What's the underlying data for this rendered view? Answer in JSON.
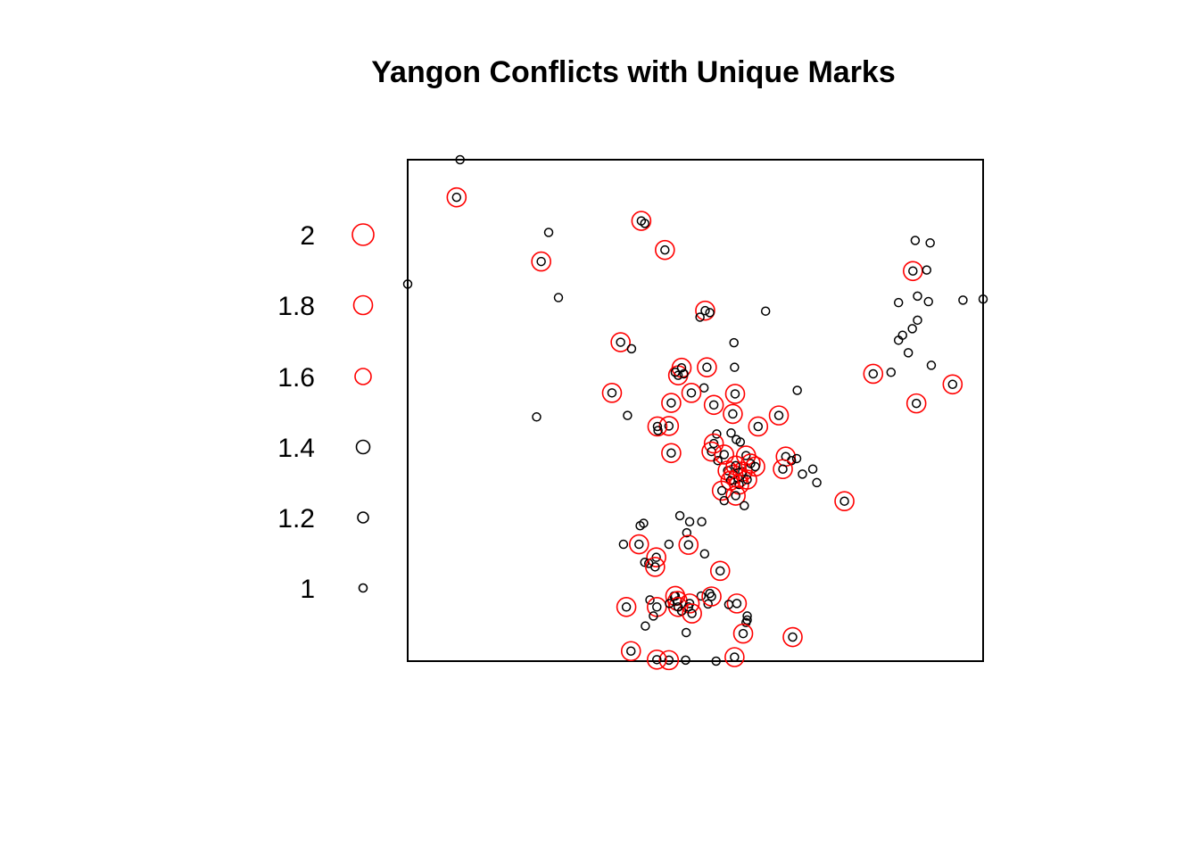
{
  "chart_data": {
    "type": "scatter",
    "title": "Yangon Conflicts with Unique Marks",
    "xlabel": "",
    "ylabel": "",
    "axes": "none",
    "frame": true,
    "legend": {
      "placement": "left",
      "entries": [
        {
          "label": "2",
          "mark": 2.0
        },
        {
          "label": "1.8",
          "mark": 1.8
        },
        {
          "label": "1.6",
          "mark": 1.6
        },
        {
          "label": "1.4",
          "mark": 1.4
        },
        {
          "label": "1.2",
          "mark": 1.2
        },
        {
          "label": "1",
          "mark": 1.0
        }
      ]
    },
    "colors": {
      "mark_low": "#000000",
      "mark_high": "#ff0000"
    },
    "marks_note": "each point drawn as an open black circle; duplicated points additionally ringed in red",
    "xlim": [
      0,
      1
    ],
    "ylim": [
      0,
      1
    ],
    "series": [
      {
        "points": [
          [
            0.091,
            1.0,
            1
          ],
          [
            0.085,
            0.925,
            2
          ],
          [
            0.0,
            0.752,
            1
          ],
          [
            0.245,
            0.855,
            1
          ],
          [
            0.232,
            0.797,
            2
          ],
          [
            0.262,
            0.725,
            1
          ],
          [
            0.406,
            0.878,
            2
          ],
          [
            0.412,
            0.873,
            1
          ],
          [
            0.447,
            0.82,
            2
          ],
          [
            0.517,
            0.699,
            2
          ],
          [
            0.508,
            0.686,
            1
          ],
          [
            0.525,
            0.695,
            1
          ],
          [
            0.622,
            0.698,
            1
          ],
          [
            0.37,
            0.636,
            2
          ],
          [
            0.389,
            0.623,
            1
          ],
          [
            0.567,
            0.635,
            1
          ],
          [
            0.568,
            0.586,
            1
          ],
          [
            0.47,
            0.57,
            2
          ],
          [
            0.476,
            0.585,
            2
          ],
          [
            0.48,
            0.573,
            1
          ],
          [
            0.465,
            0.576,
            1
          ],
          [
            0.52,
            0.586,
            2
          ],
          [
            0.515,
            0.545,
            1
          ],
          [
            0.493,
            0.535,
            2
          ],
          [
            0.355,
            0.535,
            2
          ],
          [
            0.382,
            0.49,
            1
          ],
          [
            0.224,
            0.487,
            1
          ],
          [
            0.458,
            0.515,
            2
          ],
          [
            0.532,
            0.511,
            2
          ],
          [
            0.569,
            0.533,
            2
          ],
          [
            0.565,
            0.493,
            2
          ],
          [
            0.454,
            0.469,
            2
          ],
          [
            0.434,
            0.468,
            2
          ],
          [
            0.435,
            0.46,
            1
          ],
          [
            0.609,
            0.468,
            2
          ],
          [
            0.645,
            0.49,
            2
          ],
          [
            0.677,
            0.54,
            1
          ],
          [
            0.537,
            0.453,
            1
          ],
          [
            0.532,
            0.434,
            2
          ],
          [
            0.562,
            0.455,
            1
          ],
          [
            0.571,
            0.442,
            1
          ],
          [
            0.578,
            0.437,
            1
          ],
          [
            0.528,
            0.418,
            2
          ],
          [
            0.539,
            0.4,
            1
          ],
          [
            0.55,
            0.412,
            2
          ],
          [
            0.458,
            0.415,
            2
          ],
          [
            0.556,
            0.38,
            2
          ],
          [
            0.566,
            0.372,
            2
          ],
          [
            0.574,
            0.365,
            2
          ],
          [
            0.582,
            0.378,
            2
          ],
          [
            0.57,
            0.39,
            2
          ],
          [
            0.588,
            0.41,
            2
          ],
          [
            0.596,
            0.394,
            2
          ],
          [
            0.561,
            0.36,
            2
          ],
          [
            0.576,
            0.352,
            2
          ],
          [
            0.59,
            0.362,
            2
          ],
          [
            0.604,
            0.388,
            2
          ],
          [
            0.546,
            0.34,
            2
          ],
          [
            0.57,
            0.33,
            2
          ],
          [
            0.55,
            0.32,
            1
          ],
          [
            0.585,
            0.31,
            1
          ],
          [
            0.657,
            0.408,
            2
          ],
          [
            0.667,
            0.4,
            1
          ],
          [
            0.652,
            0.383,
            2
          ],
          [
            0.676,
            0.404,
            1
          ],
          [
            0.686,
            0.373,
            1
          ],
          [
            0.704,
            0.383,
            1
          ],
          [
            0.711,
            0.356,
            1
          ],
          [
            0.759,
            0.319,
            2
          ],
          [
            0.965,
            0.72,
            1
          ],
          [
            0.886,
            0.728,
            1
          ],
          [
            0.905,
            0.717,
            1
          ],
          [
            0.878,
            0.778,
            2
          ],
          [
            0.886,
            0.68,
            1
          ],
          [
            0.877,
            0.663,
            1
          ],
          [
            0.87,
            0.615,
            1
          ],
          [
            0.86,
            0.65,
            1
          ],
          [
            0.853,
            0.64,
            1
          ],
          [
            0.809,
            0.573,
            2
          ],
          [
            0.84,
            0.576,
            1
          ],
          [
            0.91,
            0.59,
            1
          ],
          [
            0.884,
            0.514,
            2
          ],
          [
            0.947,
            0.552,
            2
          ],
          [
            0.882,
            0.839,
            1
          ],
          [
            0.908,
            0.834,
            1
          ],
          [
            0.853,
            0.715,
            1
          ],
          [
            0.902,
            0.78,
            1
          ],
          [
            0.473,
            0.29,
            1
          ],
          [
            0.49,
            0.278,
            1
          ],
          [
            0.511,
            0.278,
            1
          ],
          [
            0.41,
            0.275,
            1
          ],
          [
            0.404,
            0.27,
            1
          ],
          [
            0.485,
            0.256,
            1
          ],
          [
            0.488,
            0.232,
            2
          ],
          [
            0.375,
            0.233,
            1
          ],
          [
            0.402,
            0.233,
            2
          ],
          [
            0.454,
            0.233,
            1
          ],
          [
            0.432,
            0.207,
            2
          ],
          [
            0.412,
            0.197,
            1
          ],
          [
            0.516,
            0.214,
            1
          ],
          [
            0.419,
            0.195,
            1
          ],
          [
            0.43,
            0.188,
            2
          ],
          [
            0.463,
            0.13,
            1
          ],
          [
            0.543,
            0.18,
            2
          ],
          [
            0.51,
            0.13,
            1
          ],
          [
            0.421,
            0.122,
            1
          ],
          [
            0.465,
            0.13,
            2
          ],
          [
            0.469,
            0.12,
            2
          ],
          [
            0.49,
            0.115,
            2
          ],
          [
            0.47,
            0.108,
            2
          ],
          [
            0.38,
            0.108,
            2
          ],
          [
            0.433,
            0.108,
            2
          ],
          [
            0.522,
            0.114,
            1
          ],
          [
            0.413,
            0.07,
            1
          ],
          [
            0.427,
            0.09,
            1
          ],
          [
            0.455,
            0.115,
            1
          ],
          [
            0.476,
            0.1,
            1
          ],
          [
            0.488,
            0.108,
            1
          ],
          [
            0.59,
            0.09,
            1
          ],
          [
            0.59,
            0.082,
            1
          ],
          [
            0.588,
            0.077,
            1
          ],
          [
            0.572,
            0.115,
            2
          ],
          [
            0.558,
            0.113,
            1
          ],
          [
            0.583,
            0.055,
            2
          ],
          [
            0.669,
            0.048,
            2
          ],
          [
            0.484,
            0.057,
            1
          ],
          [
            0.494,
            0.095,
            2
          ],
          [
            0.525,
            0.135,
            1
          ],
          [
            0.528,
            0.129,
            2
          ],
          [
            0.568,
            0.008,
            2
          ],
          [
            0.454,
            0.002,
            2
          ],
          [
            0.483,
            0.002,
            1
          ],
          [
            0.433,
            0.003,
            2
          ],
          [
            0.388,
            0.02,
            2
          ],
          [
            0.536,
            0.0,
            1
          ],
          [
            1.0,
            0.722,
            1
          ]
        ]
      }
    ]
  }
}
